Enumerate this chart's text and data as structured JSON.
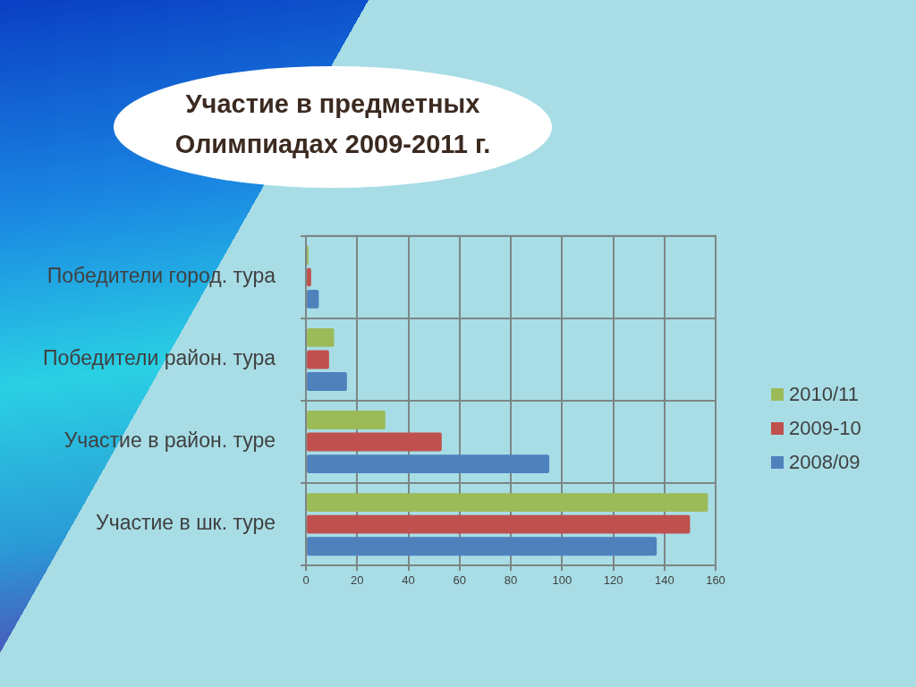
{
  "chart_data": {
    "type": "bar",
    "title": "Участие в предметных Олимпиадах 2009-2011 г.",
    "orientation": "horizontal",
    "categories": [
      "Победители город. тура",
      "Победители район. тура",
      "Участие в район. туре",
      "Участие в шк. туре"
    ],
    "series": [
      {
        "name": "2010/11",
        "color": "#9bbb59",
        "values": [
          1,
          11,
          31,
          157
        ]
      },
      {
        "name": "2009-10",
        "color": "#c0504d",
        "values": [
          2,
          9,
          53,
          150
        ]
      },
      {
        "name": "2008/09",
        "color": "#4f81bd",
        "values": [
          5,
          16,
          95,
          137
        ]
      }
    ],
    "xlim": [
      0,
      160
    ],
    "xticks": [
      0,
      20,
      40,
      60,
      80,
      100,
      120,
      140,
      160
    ],
    "grid": true,
    "legend": "right"
  }
}
